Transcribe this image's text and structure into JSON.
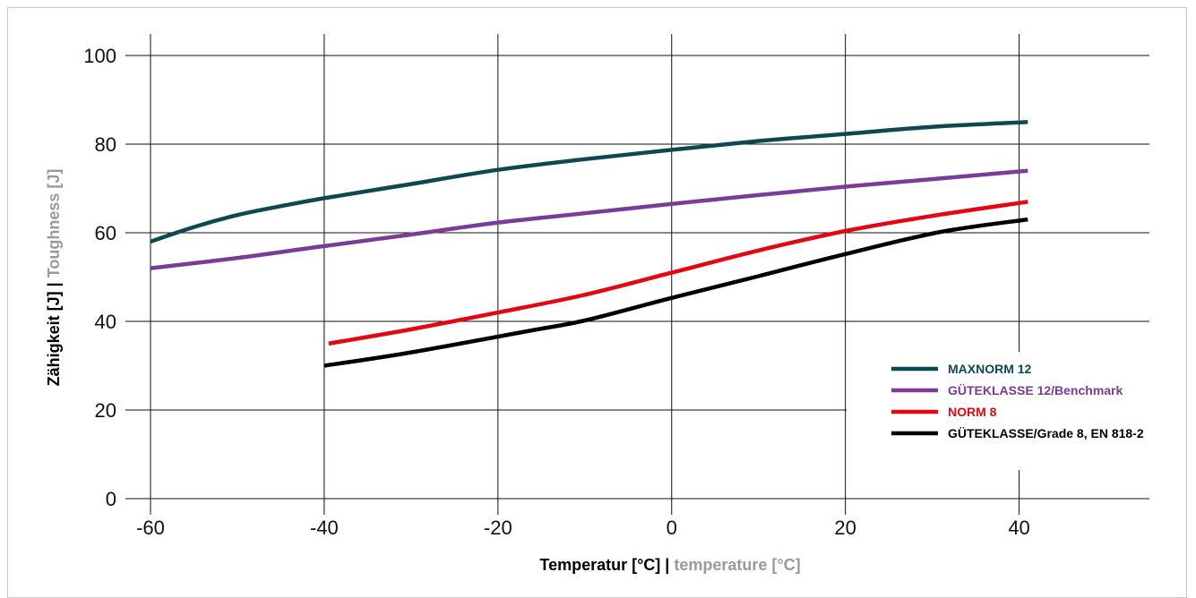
{
  "chart_data": {
    "type": "line",
    "xlabel": {
      "primary": "Temperatur [°C]",
      "separator": " | ",
      "secondary": "temperature [°C]"
    },
    "ylabel": {
      "primary": "Zähigkeit [J]",
      "separator": " | ",
      "secondary": "Toughness [J]"
    },
    "xlim": [
      -60,
      55
    ],
    "ylim": [
      0,
      100
    ],
    "x_ticks": [
      -60,
      -40,
      -20,
      0,
      20,
      40
    ],
    "y_ticks": [
      0,
      20,
      40,
      60,
      80,
      100
    ],
    "x_tick_labels": [
      "-60",
      "-40",
      "-20",
      "0",
      "20",
      "40"
    ],
    "y_tick_labels": [
      "0",
      "20",
      "40",
      "60",
      "80",
      "100"
    ],
    "grid": true,
    "legend_position": "lower-right",
    "series": [
      {
        "name": "MAXNORM 12",
        "color": "#0e4850",
        "points": [
          [
            -60,
            58
          ],
          [
            -55,
            61.3
          ],
          [
            -50,
            64
          ],
          [
            -45,
            66
          ],
          [
            -40,
            67.8
          ],
          [
            -30,
            71
          ],
          [
            -20,
            74.2
          ],
          [
            -10,
            76.6
          ],
          [
            0,
            78.7
          ],
          [
            10,
            80.7
          ],
          [
            20,
            82.3
          ],
          [
            30,
            83.9
          ],
          [
            41,
            85
          ]
        ]
      },
      {
        "name": "GÜTEKLASSE 12/Benchmark",
        "color": "#7b3b97",
        "points": [
          [
            -60,
            52
          ],
          [
            -50,
            54.3
          ],
          [
            -40,
            57
          ],
          [
            -30,
            59.6
          ],
          [
            -20,
            62.3
          ],
          [
            -10,
            64.4
          ],
          [
            0,
            66.5
          ],
          [
            10,
            68.5
          ],
          [
            20,
            70.4
          ],
          [
            30,
            72.1
          ],
          [
            41,
            74
          ]
        ]
      },
      {
        "name": "NORM 8",
        "color": "#e30613",
        "points": [
          [
            -39.5,
            35
          ],
          [
            -30,
            38.2
          ],
          [
            -20,
            42
          ],
          [
            -10,
            46
          ],
          [
            0,
            51
          ],
          [
            10,
            56
          ],
          [
            20,
            60.4
          ],
          [
            30,
            63.8
          ],
          [
            41,
            67
          ]
        ]
      },
      {
        "name": "GÜTEKLASSE/Grade 8, EN 818-2",
        "color": "#000000",
        "points": [
          [
            -40,
            30
          ],
          [
            -30,
            33
          ],
          [
            -16,
            38
          ],
          [
            -10,
            40.2
          ],
          [
            0,
            45.3
          ],
          [
            10,
            50.2
          ],
          [
            20,
            55.2
          ],
          [
            31,
            60.2
          ],
          [
            41,
            63
          ]
        ]
      }
    ]
  }
}
